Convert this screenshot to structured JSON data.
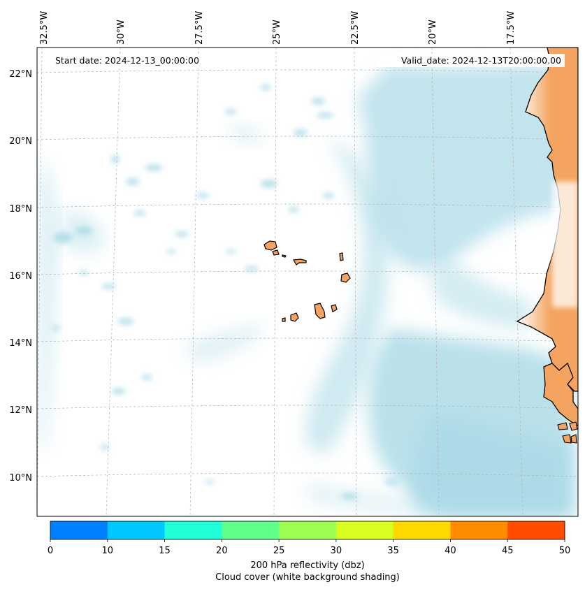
{
  "map": {
    "start_date_label": "Start date: 2024-12-13_00:00:00",
    "valid_date_label": "Valid_date: 2024-12-13T20:00:00.00",
    "longitude_labels": [
      "32.5°W",
      "30°W",
      "27.5°W",
      "25°W",
      "22.5°W",
      "20°W",
      "17.5°W"
    ],
    "latitude_labels": [
      "22°N",
      "20°N",
      "18°N",
      "16°N",
      "14°N",
      "12°N",
      "10°N"
    ],
    "colors": {
      "land": "#f4a460",
      "cloud": "#a9d9e6",
      "coastline": "#000000",
      "gridline": "#b0b0b0"
    }
  },
  "colorbar": {
    "tick_labels": [
      "0",
      "10",
      "15",
      "20",
      "25",
      "30",
      "35",
      "40",
      "45",
      "50"
    ],
    "colors": [
      "#0080ff",
      "#00c8ff",
      "#20ffd8",
      "#60ff8c",
      "#9cff50",
      "#d8ff20",
      "#ffd800",
      "#ff8c00",
      "#ff4c00"
    ],
    "title_line1": "200 hPa reflectivity (dbz)",
    "title_line2": "Cloud cover (white background shading)"
  }
}
